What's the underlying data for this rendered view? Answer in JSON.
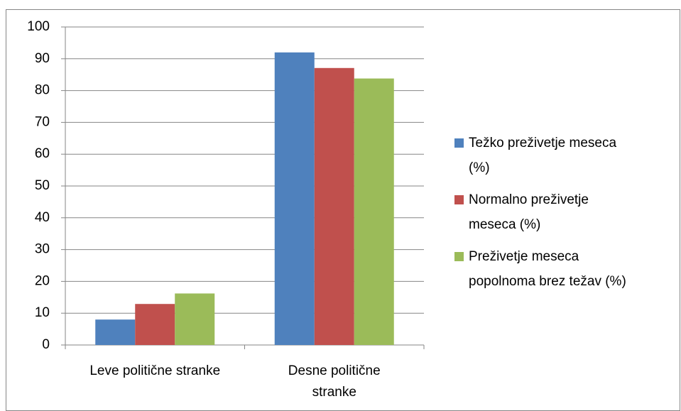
{
  "chart_data": {
    "type": "bar",
    "categories": [
      "Leve politične stranke",
      "Desne politične stranke"
    ],
    "series": [
      {
        "name": "Težko preživetje meseca (%)",
        "color": "#4f81bd",
        "values": [
          8,
          92
        ]
      },
      {
        "name": "Normalno preživetje meseca (%)",
        "color": "#c0504d",
        "values": [
          12.9,
          87.1
        ]
      },
      {
        "name": "Preživetje meseca popolnoma brez težav (%)",
        "color": "#9bbb59",
        "values": [
          16.2,
          83.8
        ]
      }
    ],
    "ylim": [
      0,
      100
    ],
    "yticks": [
      0,
      10,
      20,
      30,
      40,
      50,
      60,
      70,
      80,
      90,
      100
    ],
    "grid": true,
    "legend": "right"
  }
}
